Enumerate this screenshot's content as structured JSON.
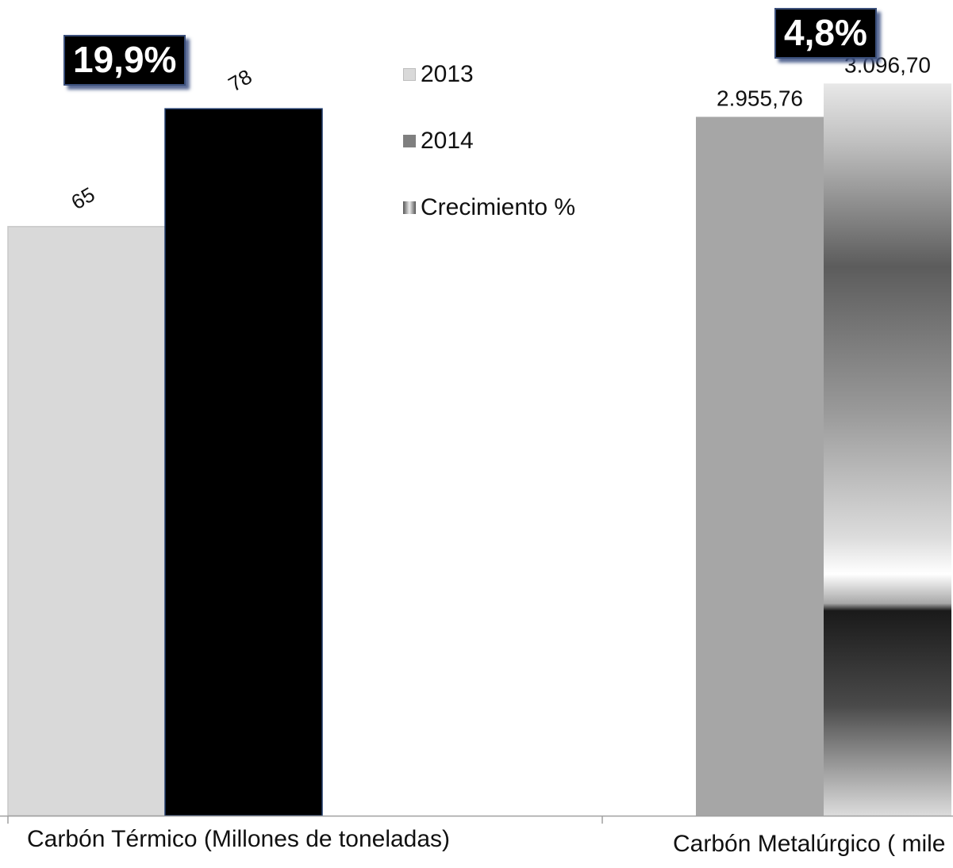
{
  "colors": {
    "series_2013_group1": "#d9d9d9",
    "series_2014_group1": "#000000",
    "series_2013_group2": "#a6a6a6",
    "series_2014_group2": "gradient-gray",
    "axis": "#a0a0a0",
    "badge_bg": "#000000",
    "badge_text": "#ffffff"
  },
  "legend": {
    "items": [
      {
        "label": "2013",
        "icon": "light-gray-square-icon"
      },
      {
        "label": "2014",
        "icon": "dark-gray-square-icon"
      },
      {
        "label": "Crecimiento %",
        "icon": "bowtie-square-icon"
      }
    ]
  },
  "chart_data": [
    {
      "type": "bar",
      "categories": [
        "Carbón Térmico  (Millones de toneladas)"
      ],
      "series": [
        {
          "name": "2013",
          "values": [
            65
          ],
          "label": "65"
        },
        {
          "name": "2014",
          "values": [
            78
          ],
          "label": "78"
        }
      ],
      "growth_label": "19,9%",
      "ylim": [
        0,
        90
      ],
      "grid": false
    },
    {
      "type": "bar",
      "categories": [
        "Carbón Metalúrgico ( mile"
      ],
      "series": [
        {
          "name": "2013",
          "values": [
            2955.76
          ],
          "label": "2.955,76"
        },
        {
          "name": "2014",
          "values": [
            3096.7
          ],
          "label": "3.096,70"
        }
      ],
      "growth_label": "4,8%",
      "ylim": [
        0,
        3450
      ],
      "grid": false
    }
  ]
}
